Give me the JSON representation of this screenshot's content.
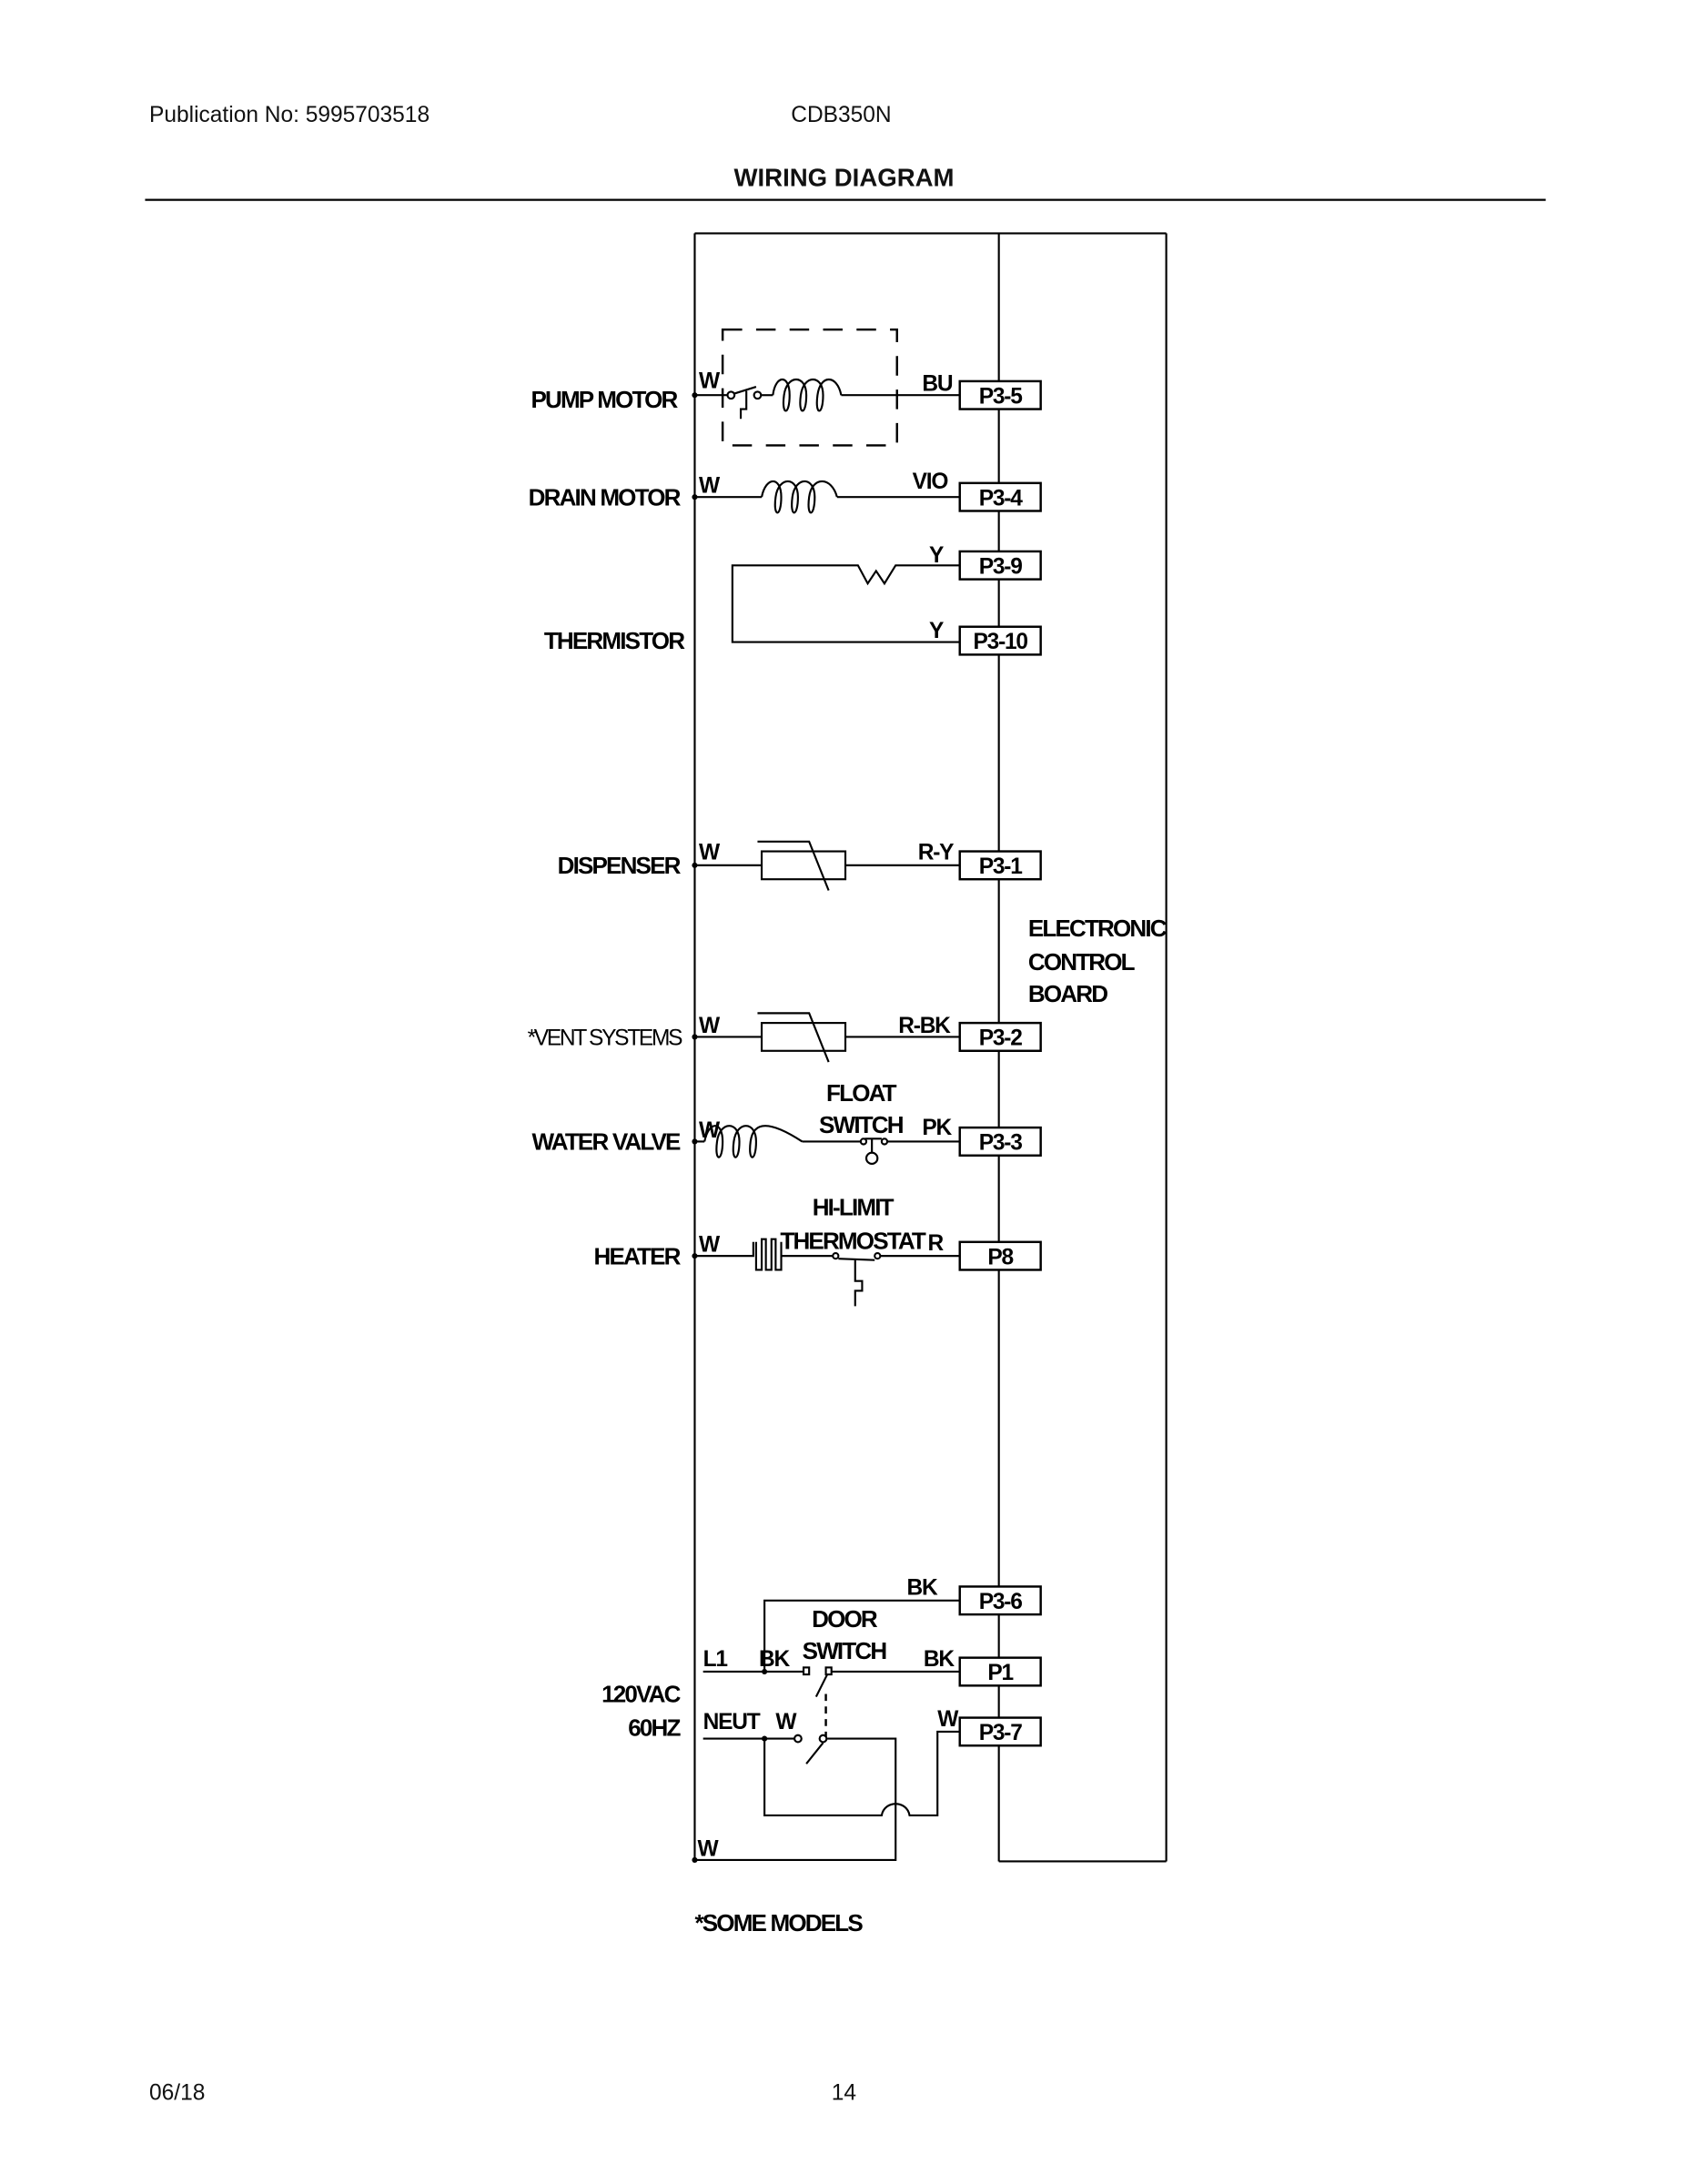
{
  "header": {
    "publication": "Publication No: 5995703518",
    "model": "CDB350N",
    "title": "WIRING DIAGRAM"
  },
  "footer": {
    "date": "06/18",
    "page": "14"
  },
  "diagram": {
    "board_label": [
      "ELECTRONIC",
      "CONTROL",
      "BOARD"
    ],
    "components": {
      "pump_motor": "PUMP MOTOR",
      "drain_motor": "DRAIN MOTOR",
      "thermistor": "THERMISTOR",
      "dispenser": "DISPENSER",
      "vent_systems": "*VENT SYSTEMS",
      "water_valve": "WATER VALVE",
      "heater": "HEATER",
      "float_switch": [
        "FLOAT",
        "SWITCH"
      ],
      "hi_limit": [
        "HI-LIMIT",
        "THERMOSTAT"
      ],
      "door_switch": [
        "DOOR",
        "SWITCH"
      ],
      "power": [
        "120VAC",
        "60HZ"
      ]
    },
    "pins": {
      "p3_5": "P3-5",
      "p3_4": "P3-4",
      "p3_9": "P3-9",
      "p3_10": "P3-10",
      "p3_1": "P3-1",
      "p3_2": "P3-2",
      "p3_3": "P3-3",
      "p8": "P8",
      "p3_6": "P3-6",
      "p1": "P1",
      "p3_7": "P3-7"
    },
    "wires": {
      "w": "W",
      "bu": "BU",
      "vio": "VIO",
      "y": "Y",
      "ry": "R-Y",
      "rbk": "R-BK",
      "pk": "PK",
      "r": "R",
      "bk": "BK",
      "l1": "L1",
      "neut": "NEUT"
    },
    "note": "*SOME MODELS"
  }
}
